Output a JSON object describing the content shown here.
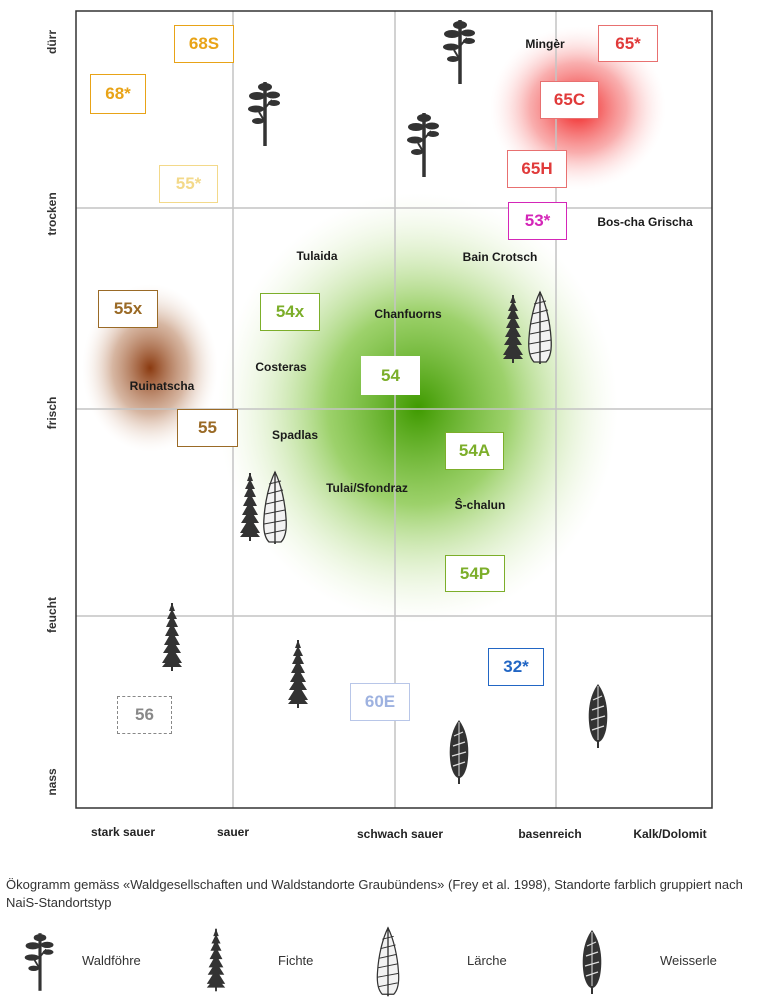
{
  "axes": {
    "y": [
      "dürr",
      "trocken",
      "frisch",
      "feucht",
      "nass"
    ],
    "x": [
      "stark sauer",
      "sauer",
      "schwach sauer",
      "basenreich",
      "Kalk/Dolomit"
    ]
  },
  "places": {
    "minger": "Mingèr",
    "boscha": "Bos-cha Grischa",
    "tulaida": "Tulaida",
    "bain": "Bain Crotsch",
    "chanfuorns": "Chanfuorns",
    "costeras": "Costeras",
    "ruinatscha": "Ruinatscha",
    "spadlas": "Spadlas",
    "tulai": "Tulai/Sfondraz",
    "schalun": "Ŝ-chalun"
  },
  "codes": {
    "c68s": "68S",
    "c68star": "68*",
    "c55star": "55*",
    "c65star": "65*",
    "c65c": "65C",
    "c65h": "65H",
    "c53star": "53*",
    "c55x": "55x",
    "c54x": "54x",
    "c54": "54",
    "c55": "55",
    "c54a": "54A",
    "c54p": "54P",
    "c32star": "32*",
    "c60e": "60E",
    "c56": "56"
  },
  "colors": {
    "orange": "#e8a317",
    "paleyellow": "#f3d98a",
    "red": "#e03a3a",
    "magenta": "#d426b8",
    "brown": "#9a6a26",
    "green": "#7cae2a",
    "blue": "#2266c4",
    "lightblue": "#9eb2e0",
    "grey": "#888888"
  },
  "caption": "Ökogramm gemäss «Waldgesellschaften und Waldstandorte Graubündens» (Frey et al. 1998), Standorte farblich gruppiert nach NaiS-Standortstyp",
  "legend": {
    "pine": "Waldföhre",
    "spruce": "Fichte",
    "larch": "Lärche",
    "alder": "Weisserle"
  }
}
